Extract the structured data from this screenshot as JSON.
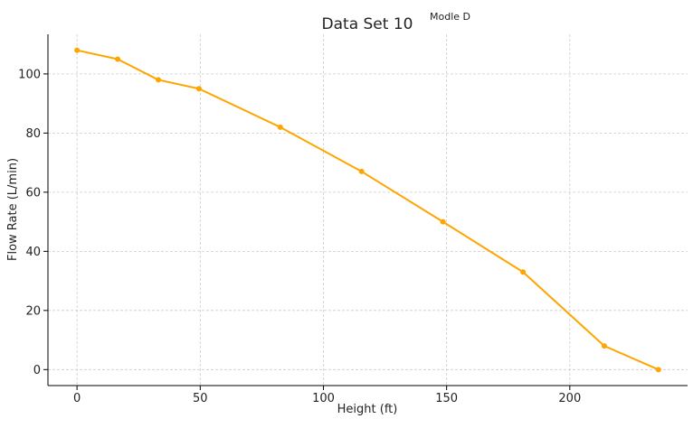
{
  "chart_data": {
    "type": "line",
    "title": "Data Set 10",
    "annotation": "Modle D",
    "xlabel": "Height (ft)",
    "ylabel": "Flow Rate (L/min)",
    "xlim": [
      -11.8,
      247.8
    ],
    "ylim": [
      -5.4,
      113.4
    ],
    "xticks": [
      0,
      50,
      100,
      150,
      200
    ],
    "yticks": [
      0,
      20,
      40,
      60,
      80,
      100
    ],
    "grid": true,
    "color": "#FFA500",
    "series": [
      {
        "x": [
          0,
          16.5,
          33,
          49.5,
          82.5,
          115.5,
          148.5,
          181,
          214,
          236
        ],
        "y": [
          108,
          105,
          98,
          95,
          82,
          67,
          50,
          33,
          8,
          0
        ]
      }
    ]
  }
}
